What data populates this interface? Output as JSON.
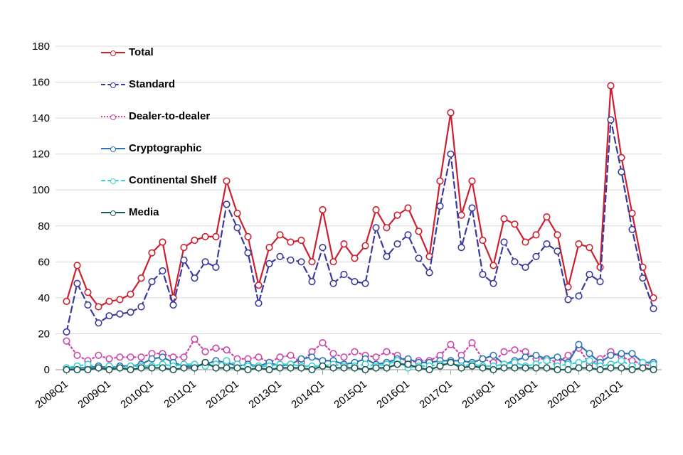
{
  "chart_data": {
    "type": "line",
    "title": "",
    "xlabel": "",
    "ylabel": "",
    "grid": "horizontal",
    "legend_position": "top-left-inside",
    "y_axis": {
      "min": 0,
      "max": 180,
      "step": 20
    },
    "x_axis": {
      "tick_labels_shown": [
        "2008Q1",
        "2009Q1",
        "2010Q1",
        "2011Q1",
        "2012Q1",
        "2013Q1",
        "2014Q1",
        "2015Q1",
        "2016Q1",
        "2017Q1",
        "2018Q1",
        "2019Q1",
        "2020Q1",
        "2021Q1"
      ],
      "rotation_deg": -38
    },
    "categories": [
      "2008Q1",
      "2008Q2",
      "2008Q3",
      "2008Q4",
      "2009Q1",
      "2009Q2",
      "2009Q3",
      "2009Q4",
      "2010Q1",
      "2010Q2",
      "2010Q3",
      "2010Q4",
      "2011Q1",
      "2011Q2",
      "2011Q3",
      "2011Q4",
      "2012Q1",
      "2012Q2",
      "2012Q3",
      "2012Q4",
      "2013Q1",
      "2013Q2",
      "2013Q3",
      "2013Q4",
      "2014Q1",
      "2014Q2",
      "2014Q3",
      "2014Q4",
      "2015Q1",
      "2015Q2",
      "2015Q3",
      "2015Q4",
      "2016Q1",
      "2016Q2",
      "2016Q3",
      "2016Q4",
      "2017Q1",
      "2017Q2",
      "2017Q3",
      "2017Q4",
      "2018Q1",
      "2018Q2",
      "2018Q3",
      "2018Q4",
      "2019Q1",
      "2019Q2",
      "2019Q3",
      "2019Q4",
      "2020Q1",
      "2020Q2",
      "2020Q3",
      "2020Q4",
      "2021Q1",
      "2021Q2",
      "2021Q3",
      "2021Q4"
    ],
    "series": [
      {
        "name": "Total",
        "color": "#CC2030",
        "style": "solid",
        "values": [
          38,
          58,
          43,
          35,
          38,
          39,
          42,
          51,
          65,
          71,
          40,
          68,
          72,
          74,
          74,
          105,
          87,
          74,
          47,
          68,
          75,
          71,
          72,
          60,
          89,
          60,
          70,
          62,
          69,
          89,
          79,
          86,
          90,
          77,
          63,
          105,
          143,
          86,
          105,
          72,
          58,
          84,
          81,
          71,
          75,
          85,
          75,
          46,
          70,
          68,
          57,
          158,
          118,
          87,
          57,
          40
        ]
      },
      {
        "name": "Standard",
        "color": "#3A3A9E",
        "style": "dashed",
        "values": [
          21,
          48,
          36,
          26,
          30,
          31,
          32,
          35,
          49,
          55,
          36,
          61,
          51,
          60,
          57,
          92,
          79,
          65,
          37,
          59,
          63,
          61,
          60,
          49,
          68,
          48,
          53,
          49,
          48,
          79,
          63,
          70,
          75,
          62,
          54,
          91,
          120,
          68,
          90,
          53,
          48,
          71,
          60,
          57,
          63,
          70,
          66,
          39,
          41,
          53,
          49,
          139,
          110,
          78,
          51,
          34
        ]
      },
      {
        "name": "Dealer-to-dealer",
        "color": "#CC46AA",
        "style": "dotted",
        "values": [
          16,
          8,
          5,
          8,
          6,
          7,
          7,
          7,
          9,
          9,
          7,
          7,
          17,
          10,
          12,
          11,
          6,
          6,
          7,
          4,
          7,
          8,
          4,
          10,
          15,
          9,
          7,
          10,
          8,
          7,
          10,
          8,
          4,
          5,
          5,
          8,
          14,
          8,
          15,
          6,
          4,
          10,
          11,
          10,
          6,
          6,
          4,
          8,
          12,
          3,
          6,
          10,
          7,
          5,
          3,
          2
        ]
      },
      {
        "name": "Cryptographic",
        "color": "#2E75B6",
        "style": "solid",
        "values": [
          1,
          1,
          1,
          2,
          1,
          2,
          2,
          3,
          6,
          7,
          4,
          2,
          2,
          3,
          5,
          4,
          2,
          3,
          2,
          4,
          2,
          3,
          6,
          7,
          5,
          5,
          3,
          4,
          6,
          3,
          4,
          6,
          6,
          4,
          4,
          5,
          5,
          5,
          4,
          6,
          8,
          3,
          5,
          7,
          8,
          6,
          7,
          4,
          14,
          9,
          4,
          8,
          9,
          9,
          4,
          4
        ]
      },
      {
        "name": "Continental Shelf",
        "color": "#40D0D0",
        "style": "dashed",
        "values": [
          1,
          2,
          3,
          1,
          2,
          1,
          2,
          2,
          2,
          3,
          2,
          3,
          3,
          2,
          3,
          5,
          3,
          2,
          2,
          2,
          3,
          3,
          2,
          2,
          2,
          3,
          2,
          2,
          3,
          2,
          3,
          5,
          1,
          2,
          2,
          3,
          4,
          2,
          3,
          2,
          2,
          3,
          4,
          2,
          3,
          5,
          2,
          3,
          4,
          5,
          2,
          3,
          5,
          2,
          4,
          3
        ]
      },
      {
        "name": "Media",
        "color": "#1E5A55",
        "style": "solid",
        "values": [
          0,
          0,
          0,
          1,
          0,
          1,
          0,
          1,
          1,
          1,
          0,
          1,
          1,
          4,
          1,
          1,
          1,
          0,
          1,
          0,
          1,
          1,
          1,
          0,
          2,
          1,
          1,
          1,
          0,
          1,
          1,
          3,
          3,
          1,
          0,
          2,
          4,
          1,
          2,
          1,
          0,
          1,
          1,
          1,
          1,
          1,
          0,
          0,
          1,
          1,
          0,
          1,
          1,
          0,
          1,
          0
        ]
      }
    ]
  }
}
